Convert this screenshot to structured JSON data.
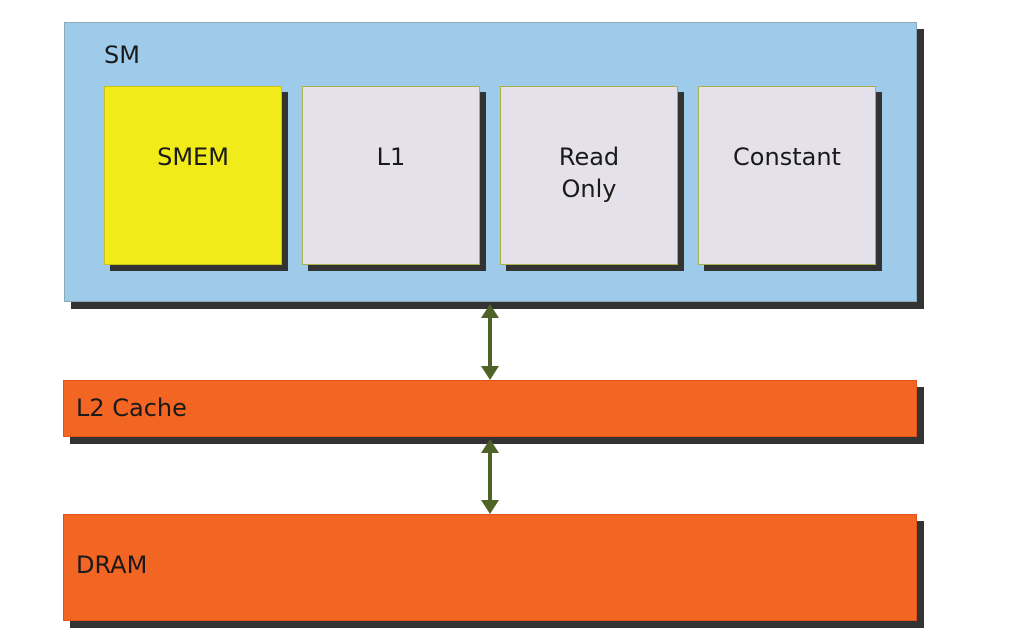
{
  "sm": {
    "label": "SM",
    "memories": [
      {
        "label": "SMEM",
        "color": "#f2eb1a"
      },
      {
        "label": "L1",
        "color": "#e5e1ea"
      },
      {
        "label": "Read\nOnly",
        "color": "#e5e1ea"
      },
      {
        "label": "Constant",
        "color": "#e5e1ea"
      }
    ],
    "color": "#9fcbeb"
  },
  "l2": {
    "label": "L2 Cache",
    "color": "#f26522"
  },
  "dram": {
    "label": "DRAM",
    "color": "#f26522"
  },
  "arrow_color": "#4f6228"
}
